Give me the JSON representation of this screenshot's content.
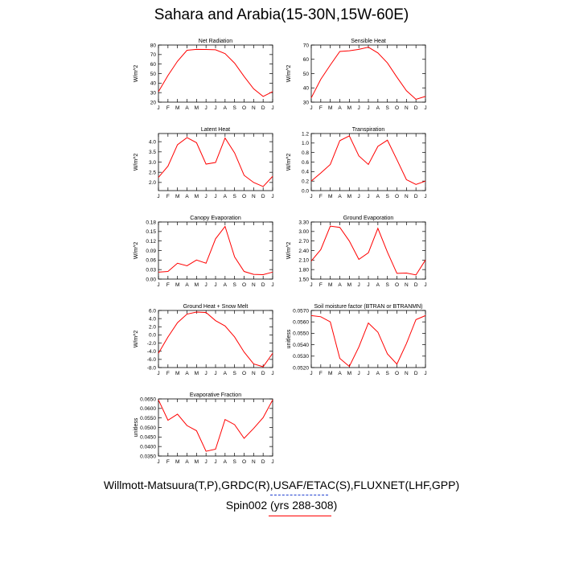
{
  "title": "Sahara and Arabia(15-30N,15W-60E)",
  "footer": {
    "line1": "Willmott-Matsuura(T,P),GRDC(R),USAF/ETAC(S),FLUXNET(LHF,GPP)",
    "line2": "Spin002 (yrs 288-308)",
    "line1_color": "#1f3fd0",
    "line2_color": "#ff0000"
  },
  "chart_data": [
    {
      "type": "line",
      "title": "Net Radiation",
      "ylabel": "W/m^2",
      "categories": [
        "J",
        "F",
        "M",
        "A",
        "M",
        "J",
        "J",
        "A",
        "S",
        "O",
        "N",
        "D",
        "J"
      ],
      "ylim": [
        20,
        80
      ],
      "yticks": [
        "20",
        "30",
        "40",
        "50",
        "60",
        "70",
        "80"
      ],
      "series": [
        {
          "color": "#ff0000",
          "values": [
            31,
            48,
            63,
            74.5,
            75.5,
            75.3,
            75,
            71,
            61,
            47,
            34,
            26,
            31
          ]
        }
      ]
    },
    {
      "type": "line",
      "title": "Sensible Heat",
      "ylabel": "W/m^2",
      "categories": [
        "J",
        "F",
        "M",
        "A",
        "M",
        "J",
        "J",
        "A",
        "S",
        "O",
        "N",
        "D",
        "J"
      ],
      "ylim": [
        30,
        70
      ],
      "yticks": [
        "30",
        "40",
        "50",
        "60",
        "70"
      ],
      "series": [
        {
          "color": "#ff0000",
          "values": [
            33,
            46,
            56,
            65.5,
            66,
            67,
            68.5,
            64.5,
            57.5,
            47.5,
            38,
            32,
            34
          ]
        }
      ]
    },
    {
      "type": "line",
      "title": "Latent Heat",
      "ylabel": "W/m^2",
      "categories": [
        "J",
        "F",
        "M",
        "A",
        "M",
        "J",
        "J",
        "A",
        "S",
        "O",
        "N",
        "D",
        "J"
      ],
      "ylim": [
        1.6,
        4.4
      ],
      "yticks": [
        "2.0",
        "2.5",
        "3.0",
        "3.5",
        "4.0"
      ],
      "series": [
        {
          "color": "#ff0000",
          "values": [
            2.25,
            2.8,
            3.85,
            4.2,
            3.95,
            2.9,
            2.98,
            4.18,
            3.45,
            2.35,
            2.0,
            1.8,
            2.3
          ]
        }
      ]
    },
    {
      "type": "line",
      "title": "Transpiration",
      "ylabel": "W/m^2",
      "categories": [
        "J",
        "F",
        "M",
        "A",
        "M",
        "J",
        "J",
        "A",
        "S",
        "O",
        "N",
        "D",
        "J"
      ],
      "ylim": [
        0,
        1.2
      ],
      "yticks": [
        "0.0",
        "0.2",
        "0.4",
        "0.6",
        "0.8",
        "1.0",
        "1.2"
      ],
      "series": [
        {
          "color": "#ff0000",
          "values": [
            0.2,
            0.37,
            0.55,
            1.05,
            1.15,
            0.73,
            0.55,
            0.93,
            1.06,
            0.65,
            0.23,
            0.13,
            0.2
          ]
        }
      ]
    },
    {
      "type": "line",
      "title": "Canopy Evaporation",
      "ylabel": "W/m^2",
      "categories": [
        "J",
        "F",
        "M",
        "A",
        "M",
        "J",
        "J",
        "A",
        "S",
        "O",
        "N",
        "D",
        "J"
      ],
      "ylim": [
        0,
        0.18
      ],
      "yticks": [
        "0.00",
        "0.03",
        "0.06",
        "0.09",
        "0.12",
        "0.15",
        "0.18"
      ],
      "series": [
        {
          "color": "#ff0000",
          "values": [
            0.022,
            0.024,
            0.05,
            0.042,
            0.06,
            0.05,
            0.127,
            0.166,
            0.07,
            0.024,
            0.015,
            0.014,
            0.022
          ]
        }
      ]
    },
    {
      "type": "line",
      "title": "Ground Evaporation",
      "ylabel": "W/m^2",
      "categories": [
        "J",
        "F",
        "M",
        "A",
        "M",
        "J",
        "J",
        "A",
        "S",
        "O",
        "N",
        "D",
        "J"
      ],
      "ylim": [
        1.5,
        3.3
      ],
      "yticks": [
        "1.50",
        "1.80",
        "2.10",
        "2.40",
        "2.70",
        "3.00",
        "3.30"
      ],
      "series": [
        {
          "color": "#ff0000",
          "values": [
            2.07,
            2.43,
            3.17,
            3.13,
            2.7,
            2.12,
            2.33,
            3.1,
            2.35,
            1.68,
            1.69,
            1.63,
            2.1
          ]
        }
      ]
    },
    {
      "type": "line",
      "title": "Ground Heat + Snow Melt",
      "ylabel": "W/m^2",
      "categories": [
        "J",
        "F",
        "M",
        "A",
        "M",
        "J",
        "J",
        "A",
        "S",
        "O",
        "N",
        "D",
        "J"
      ],
      "ylim": [
        -8,
        6
      ],
      "yticks": [
        "-8.0",
        "-6.0",
        "-4.0",
        "-2.0",
        "0.0",
        "2.0",
        "4.0",
        "6.0"
      ],
      "series": [
        {
          "color": "#ff0000",
          "values": [
            -4.5,
            -0.5,
            3.0,
            5.1,
            5.6,
            5.5,
            3.5,
            2.2,
            -0.5,
            -4.2,
            -7.1,
            -7.8,
            -4.5
          ]
        }
      ]
    },
    {
      "type": "line",
      "title": "Soil moisture factor (BTRAN or BTRANMN)",
      "ylabel": "unitless",
      "categories": [
        "J",
        "F",
        "M",
        "A",
        "M",
        "J",
        "J",
        "A",
        "S",
        "O",
        "N",
        "D",
        "J"
      ],
      "ylim": [
        0.052,
        0.057
      ],
      "yticks": [
        "0.0520",
        "0.0530",
        "0.0540",
        "0.0550",
        "0.0560",
        "0.0570"
      ],
      "series": [
        {
          "color": "#ff0000",
          "values": [
            0.05655,
            0.05645,
            0.056,
            0.0528,
            0.0521,
            0.0538,
            0.0559,
            0.0551,
            0.0532,
            0.0523,
            0.0541,
            0.0562,
            0.05655
          ]
        }
      ]
    },
    {
      "type": "line",
      "title": "Evaporative Fraction",
      "ylabel": "unitless",
      "categories": [
        "J",
        "F",
        "M",
        "A",
        "M",
        "J",
        "J",
        "A",
        "S",
        "O",
        "N",
        "D",
        "J"
      ],
      "ylim": [
        0.035,
        0.065
      ],
      "yticks": [
        "0.0350",
        "0.0400",
        "0.0450",
        "0.0500",
        "0.0550",
        "0.0600",
        "0.0650"
      ],
      "series": [
        {
          "color": "#ff0000",
          "values": [
            0.0645,
            0.0538,
            0.057,
            0.051,
            0.0483,
            0.0375,
            0.0386,
            0.0542,
            0.0515,
            0.0443,
            0.0495,
            0.0552,
            0.0645
          ]
        }
      ]
    }
  ]
}
